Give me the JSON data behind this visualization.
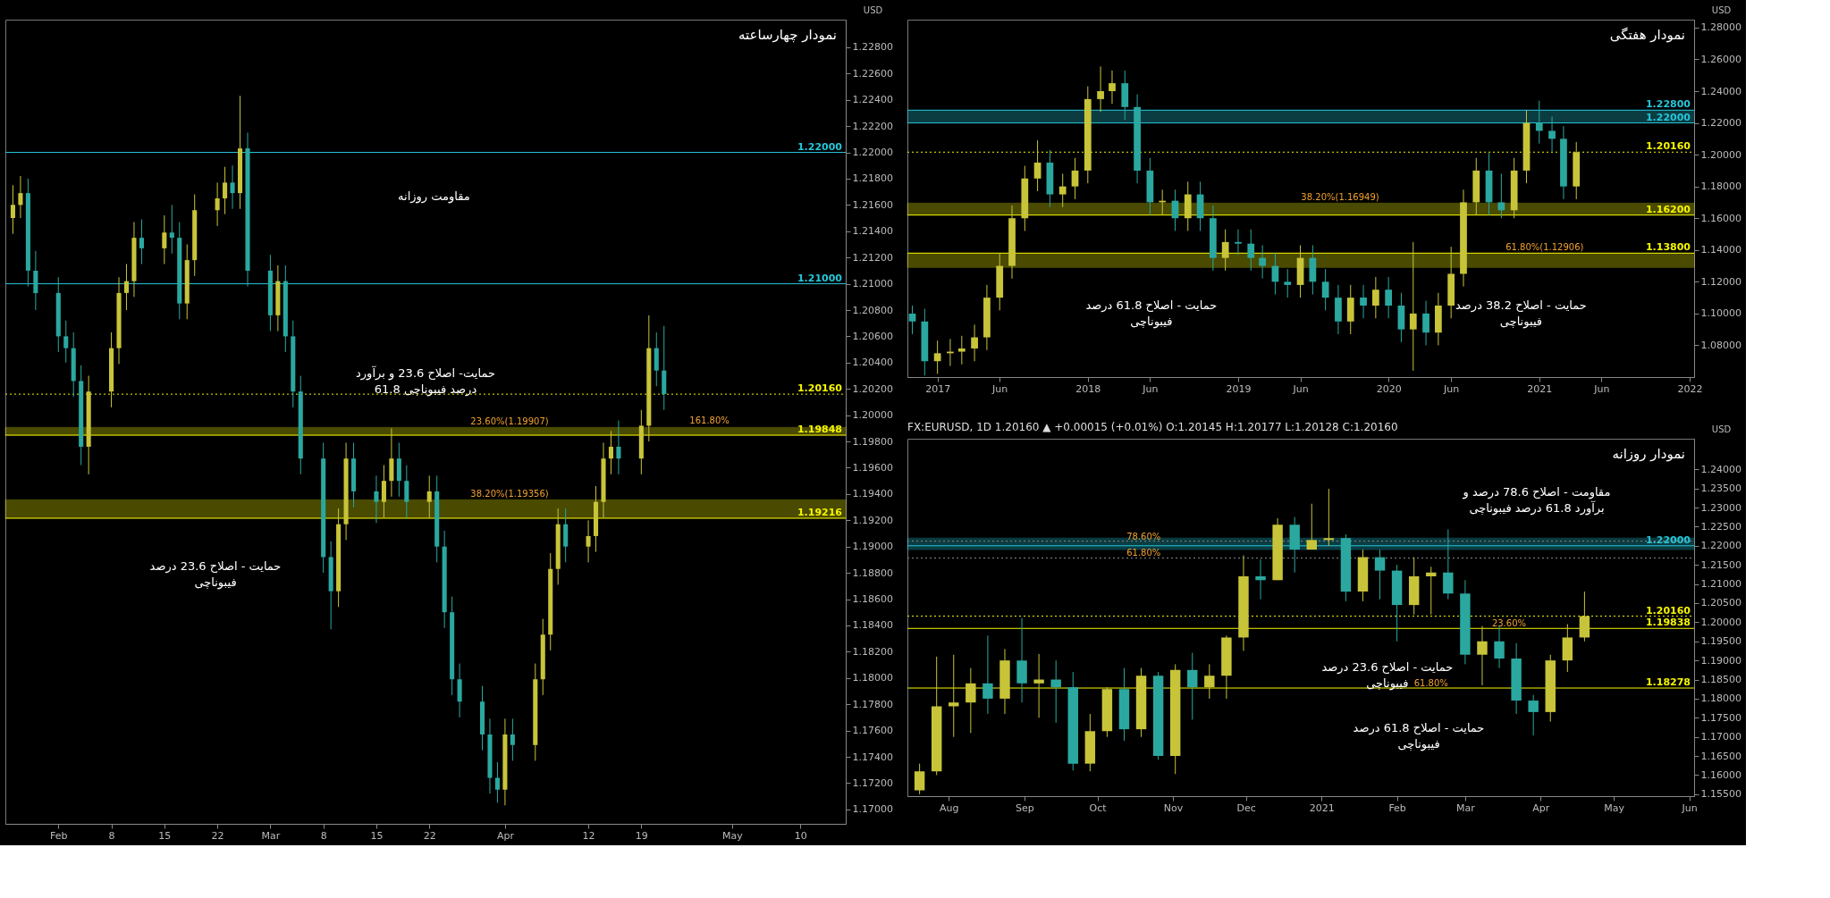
{
  "chart_data": [
    {
      "type": "candlestick",
      "title": "نمودار چهارساعته",
      "ylabel": "USD",
      "colors": [
        "#c8c43a",
        "#c8c43a",
        "#2aa8a0",
        "#2aa8a0",
        "#2aa8a0",
        "#2aa8a0",
        "#2aa8a0",
        "#2aa8a0",
        "#c8c43a",
        "#c8c43a",
        "#c8c43a",
        "#c8c43a",
        "#c8c43a",
        "#2aa8a0",
        "#c8c43a",
        "#2aa8a0",
        "#2aa8a0",
        "#c8c43a",
        "#c8c43a",
        "#c8c43a",
        "#c8c43a",
        "#2aa8a0",
        "#c8c43a",
        "#2aa8a0",
        "#2aa8a0",
        "#c8c43a",
        "#2aa8a0",
        "#2aa8a0",
        "#2aa8a0",
        "#2aa8a0",
        "#2aa8a0",
        "#c8c43a",
        "#c8c43a",
        "#2aa8a0",
        "#2aa8a0",
        "#c8c43a",
        "#c8c43a",
        "#2aa8a0",
        "#2aa8a0",
        "#c8c43a",
        "#2aa8a0",
        "#2aa8a0",
        "#2aa8a0",
        "#2aa8a0",
        "#2aa8a0",
        "#2aa8a0",
        "#2aa8a0",
        "#c8c43a",
        "#2aa8a0",
        "#c8c43a",
        "#c8c43a",
        "#c8c43a",
        "#c8c43a",
        "#2aa8a0",
        "#c8c43a",
        "#c8c43a",
        "#c8c43a",
        "#c8c43a",
        "#2aa8a0",
        "#c8c43a",
        "#c8c43a",
        "#2aa8a0",
        "#2aa8a0"
      ],
      "x": [
        "2021-01-26",
        "2021-01-27",
        "2021-01-28",
        "2021-01-29",
        "2021-02-01",
        "2021-02-02",
        "2021-02-03",
        "2021-02-04",
        "2021-02-05",
        "2021-02-08",
        "2021-02-09",
        "2021-02-10",
        "2021-02-11",
        "2021-02-12",
        "2021-02-15",
        "2021-02-16",
        "2021-02-17",
        "2021-02-18",
        "2021-02-19",
        "2021-02-22",
        "2021-02-23",
        "2021-02-24",
        "2021-02-25",
        "2021-02-26",
        "2021-03-01",
        "2021-03-02",
        "2021-03-03",
        "2021-03-04",
        "2021-03-05",
        "2021-03-08",
        "2021-03-09",
        "2021-03-10",
        "2021-03-11",
        "2021-03-12",
        "2021-03-15",
        "2021-03-16",
        "2021-03-17",
        "2021-03-18",
        "2021-03-19",
        "2021-03-22",
        "2021-03-23",
        "2021-03-24",
        "2021-03-25",
        "2021-03-26",
        "2021-03-29",
        "2021-03-30",
        "2021-03-31",
        "2021-04-01",
        "2021-04-02",
        "2021-04-05",
        "2021-04-06",
        "2021-04-07",
        "2021-04-08",
        "2021-04-09",
        "2021-04-12",
        "2021-04-13",
        "2021-04-14",
        "2021-04-15",
        "2021-04-16",
        "2021-04-19",
        "2021-04-20",
        "2021-04-21",
        "2021-04-22"
      ],
      "ohlc": [
        [
          1.215,
          1.2175,
          1.2138,
          1.216
        ],
        [
          1.216,
          1.2182,
          1.215,
          1.2169
        ],
        [
          1.2169,
          1.218,
          1.2098,
          1.211
        ],
        [
          1.211,
          1.2125,
          1.208,
          1.2093
        ],
        [
          1.2093,
          1.2105,
          1.2048,
          1.206
        ],
        [
          1.206,
          1.2072,
          1.204,
          1.2051
        ],
        [
          1.2051,
          1.2063,
          1.2014,
          1.2026
        ],
        [
          1.2026,
          1.2038,
          1.1962,
          1.1976
        ],
        [
          1.1976,
          1.203,
          1.1955,
          1.2018
        ],
        [
          1.2018,
          1.2063,
          1.2006,
          1.2051
        ],
        [
          1.2051,
          1.2105,
          1.2039,
          1.2093
        ],
        [
          1.2093,
          1.2115,
          1.208,
          1.2102
        ],
        [
          1.2102,
          1.2147,
          1.209,
          1.2135
        ],
        [
          1.2135,
          1.2149,
          1.2115,
          1.2127
        ],
        [
          1.2127,
          1.2152,
          1.2115,
          1.2139
        ],
        [
          1.2139,
          1.216,
          1.2123,
          1.2135
        ],
        [
          1.2135,
          1.2147,
          1.2073,
          1.2085
        ],
        [
          1.2085,
          1.213,
          1.2073,
          1.2118
        ],
        [
          1.2118,
          1.2168,
          1.2106,
          1.2156
        ],
        [
          1.2156,
          1.2177,
          1.2144,
          1.2165
        ],
        [
          1.2165,
          1.2189,
          1.2153,
          1.2177
        ],
        [
          1.2177,
          1.219,
          1.2157,
          1.2169
        ],
        [
          1.2169,
          1.2243,
          1.2157,
          1.2203
        ],
        [
          1.2203,
          1.2215,
          1.2098,
          1.211
        ],
        [
          1.211,
          1.2122,
          1.2064,
          1.2076
        ],
        [
          1.2076,
          1.2114,
          1.2064,
          1.2102
        ],
        [
          1.2102,
          1.2114,
          1.2048,
          1.206
        ],
        [
          1.206,
          1.2072,
          1.2006,
          1.2018
        ],
        [
          1.2018,
          1.203,
          1.1955,
          1.1967
        ],
        [
          1.1967,
          1.1979,
          1.188,
          1.1892
        ],
        [
          1.1892,
          1.1904,
          1.1837,
          1.1866
        ],
        [
          1.1866,
          1.1929,
          1.1854,
          1.1917
        ],
        [
          1.1917,
          1.1979,
          1.1905,
          1.1967
        ],
        [
          1.1967,
          1.1979,
          1.193,
          1.1942
        ],
        [
          1.1942,
          1.1954,
          1.1918,
          1.1934
        ],
        [
          1.1934,
          1.1962,
          1.1922,
          1.195
        ],
        [
          1.195,
          1.199,
          1.1938,
          1.1967
        ],
        [
          1.1967,
          1.1979,
          1.1938,
          1.195
        ],
        [
          1.195,
          1.1962,
          1.1922,
          1.1934
        ],
        [
          1.1934,
          1.1954,
          1.1922,
          1.1942
        ],
        [
          1.1942,
          1.1954,
          1.1888,
          1.19
        ],
        [
          1.19,
          1.1912,
          1.1838,
          1.185
        ],
        [
          1.185,
          1.1862,
          1.1787,
          1.1799
        ],
        [
          1.1799,
          1.1811,
          1.177,
          1.1782
        ],
        [
          1.1782,
          1.1794,
          1.1745,
          1.1757
        ],
        [
          1.1757,
          1.1769,
          1.1712,
          1.1724
        ],
        [
          1.1724,
          1.1736,
          1.1705,
          1.1715
        ],
        [
          1.1715,
          1.1769,
          1.1703,
          1.1757
        ],
        [
          1.1757,
          1.1769,
          1.1737,
          1.1749
        ],
        [
          1.1749,
          1.1811,
          1.1737,
          1.1799
        ],
        [
          1.1799,
          1.1845,
          1.1787,
          1.1833
        ],
        [
          1.1833,
          1.1895,
          1.1821,
          1.1883
        ],
        [
          1.1883,
          1.1929,
          1.1871,
          1.1917
        ],
        [
          1.1917,
          1.1929,
          1.1888,
          1.19
        ],
        [
          1.19,
          1.192,
          1.1888,
          1.1908
        ],
        [
          1.1908,
          1.1946,
          1.1896,
          1.1934
        ],
        [
          1.1934,
          1.1979,
          1.1922,
          1.1967
        ],
        [
          1.1967,
          1.1988,
          1.1955,
          1.1976
        ],
        [
          1.1976,
          1.1996,
          1.1955,
          1.1967
        ],
        [
          1.1967,
          1.2004,
          1.1955,
          1.1992
        ],
        [
          1.1992,
          1.2076,
          1.198,
          1.2051
        ],
        [
          1.2051,
          1.2063,
          1.2022,
          1.2034
        ],
        [
          1.2034,
          1.2068,
          1.2004,
          1.2016
        ]
      ],
      "xlim": [
        "2021-01-25",
        "2021-05-16"
      ],
      "xticks": [
        {
          "value": "2021-02-01",
          "label": "Feb"
        },
        {
          "value": "2021-02-08",
          "label": "8"
        },
        {
          "value": "2021-02-15",
          "label": "15"
        },
        {
          "value": "2021-02-22",
          "label": "22"
        },
        {
          "value": "2021-03-01",
          "label": "Mar"
        },
        {
          "value": "2021-03-08",
          "label": "8"
        },
        {
          "value": "2021-03-15",
          "label": "15"
        },
        {
          "value": "2021-03-22",
          "label": "22"
        },
        {
          "value": "2021-04-01",
          "label": "Apr"
        },
        {
          "value": "2021-04-12",
          "label": "12"
        },
        {
          "value": "2021-04-19",
          "label": "19"
        },
        {
          "value": "2021-05-01",
          "label": "May"
        },
        {
          "value": "2021-05-10",
          "label": "10"
        }
      ],
      "ylim": [
        1.1689,
        1.2301
      ],
      "yticks": [
        {
          "value": 1.17,
          "label": "1.17000"
        },
        {
          "value": 1.172,
          "label": "1.17200"
        },
        {
          "value": 1.174,
          "label": "1.17400"
        },
        {
          "value": 1.176,
          "label": "1.17600"
        },
        {
          "value": 1.178,
          "label": "1.17800"
        },
        {
          "value": 1.18,
          "label": "1.18000"
        },
        {
          "value": 1.182,
          "label": "1.18200"
        },
        {
          "value": 1.184,
          "label": "1.18400"
        },
        {
          "value": 1.186,
          "label": "1.18600"
        },
        {
          "value": 1.188,
          "label": "1.18800"
        },
        {
          "value": 1.19,
          "label": "1.19000"
        },
        {
          "value": 1.192,
          "label": "1.19200"
        },
        {
          "value": 1.194,
          "label": "1.19400"
        },
        {
          "value": 1.196,
          "label": "1.19600"
        },
        {
          "value": 1.198,
          "label": "1.19800"
        },
        {
          "value": 1.2,
          "label": "1.20000"
        },
        {
          "value": 1.202,
          "label": "1.20200"
        },
        {
          "value": 1.204,
          "label": "1.20400"
        },
        {
          "value": 1.206,
          "label": "1.20600"
        },
        {
          "value": 1.208,
          "label": "1.20800"
        },
        {
          "value": 1.21,
          "label": "1.21000"
        },
        {
          "value": 1.212,
          "label": "1.21200"
        },
        {
          "value": 1.214,
          "label": "1.21400"
        },
        {
          "value": 1.216,
          "label": "1.21600"
        },
        {
          "value": 1.218,
          "label": "1.21800"
        },
        {
          "value": 1.22,
          "label": "1.22000"
        },
        {
          "value": 1.222,
          "label": "1.22200"
        },
        {
          "value": 1.224,
          "label": "1.22400"
        },
        {
          "value": 1.226,
          "label": "1.22600"
        },
        {
          "value": 1.228,
          "label": "1.22800"
        }
      ],
      "ref_lines": [
        {
          "axis": "y",
          "value": 1.22,
          "label": "1.22000",
          "color": "#26c6da"
        },
        {
          "axis": "y",
          "value": 1.21,
          "label": "1.21000",
          "color": "#26c6da"
        },
        {
          "axis": "y",
          "value": 1.2016,
          "label": "1.20160",
          "color": "#f5f500",
          "line_style": "dotted"
        },
        {
          "axis": "y",
          "value": 1.19848,
          "label": "1.19848",
          "color": "#f5f500"
        },
        {
          "axis": "y",
          "value": 1.19216,
          "label": "1.19216",
          "color": "#f5f500"
        }
      ],
      "bands": [
        {
          "axis": "y",
          "from": 1.19848,
          "to": 1.19907,
          "label": "23.60%(1.19907)",
          "color": "#f5f500"
        },
        {
          "axis": "y",
          "from": 1.19216,
          "to": 1.19356,
          "label": "38.20%(1.19356)",
          "color": "#f5f500"
        }
      ],
      "annotations": [
        "مقاومت روزانه",
        "حمایت- اصلاح 23.6 و برآورد 61.8 درصد فیبوناچی",
        "حمایت - اصلاح 23.6 درصد فیبوناچی",
        {
          "text": "161.80%",
          "x": "2021-04-28",
          "y": 1.1992
        }
      ]
    },
    {
      "type": "candlestick",
      "title": "نمودار هفتگی",
      "ylabel": "USD",
      "colors": [
        "#2aa8a0",
        "#2aa8a0",
        "#c8c43a",
        "#c8c43a",
        "#c8c43a",
        "#c8c43a",
        "#c8c43a",
        "#c8c43a",
        "#c8c43a",
        "#c8c43a",
        "#c8c43a",
        "#2aa8a0",
        "#c8c43a",
        "#c8c43a",
        "#c8c43a",
        "#c8c43a",
        "#c8c43a",
        "#2aa8a0",
        "#2aa8a0",
        "#2aa8a0",
        "#c8c43a",
        "#2aa8a0",
        "#c8c43a",
        "#2aa8a0",
        "#2aa8a0",
        "#c8c43a",
        "#2aa8a0",
        "#2aa8a0",
        "#2aa8a0",
        "#2aa8a0",
        "#2aa8a0",
        "#c8c43a",
        "#2aa8a0",
        "#2aa8a0",
        "#2aa8a0",
        "#c8c43a",
        "#2aa8a0",
        "#c8c43a",
        "#2aa8a0",
        "#2aa8a0",
        "#c8c43a",
        "#2aa8a0",
        "#c8c43a",
        "#c8c43a",
        "#c8c43a",
        "#c8c43a",
        "#2aa8a0",
        "#2aa8a0",
        "#c8c43a",
        "#c8c43a",
        "#2aa8a0",
        "#2aa8a0",
        "#2aa8a0",
        "#c8c43a"
      ],
      "x": [
        "2016-11-01",
        "2016-12-01",
        "2017-01-01",
        "2017-02-01",
        "2017-03-01",
        "2017-04-01",
        "2017-05-01",
        "2017-06-01",
        "2017-07-01",
        "2017-08-01",
        "2017-09-01",
        "2017-10-01",
        "2017-11-01",
        "2017-12-01",
        "2018-01-01",
        "2018-02-01",
        "2018-03-01",
        "2018-04-01",
        "2018-05-01",
        "2018-06-01",
        "2018-07-01",
        "2018-08-01",
        "2018-09-01",
        "2018-10-01",
        "2018-11-01",
        "2018-12-01",
        "2019-01-01",
        "2019-02-01",
        "2019-03-01",
        "2019-04-01",
        "2019-05-01",
        "2019-06-01",
        "2019-07-01",
        "2019-08-01",
        "2019-09-01",
        "2019-10-01",
        "2019-11-01",
        "2019-12-01",
        "2020-01-01",
        "2020-02-01",
        "2020-03-01",
        "2020-04-01",
        "2020-05-01",
        "2020-06-01",
        "2020-07-01",
        "2020-08-01",
        "2020-09-01",
        "2020-10-01",
        "2020-11-01",
        "2020-12-01",
        "2021-01-01",
        "2021-02-01",
        "2021-03-01",
        "2021-04-01"
      ],
      "ohlc": [
        [
          1.1,
          1.105,
          1.087,
          1.095
        ],
        [
          1.095,
          1.103,
          1.061,
          1.07
        ],
        [
          1.07,
          1.083,
          1.062,
          1.075
        ],
        [
          1.075,
          1.084,
          1.067,
          1.076
        ],
        [
          1.076,
          1.086,
          1.068,
          1.078
        ],
        [
          1.078,
          1.093,
          1.07,
          1.085
        ],
        [
          1.085,
          1.118,
          1.077,
          1.11
        ],
        [
          1.11,
          1.138,
          1.102,
          1.13
        ],
        [
          1.13,
          1.168,
          1.122,
          1.16
        ],
        [
          1.16,
          1.193,
          1.152,
          1.185
        ],
        [
          1.185,
          1.209,
          1.177,
          1.195
        ],
        [
          1.195,
          1.203,
          1.167,
          1.175
        ],
        [
          1.175,
          1.188,
          1.167,
          1.18
        ],
        [
          1.18,
          1.198,
          1.172,
          1.19
        ],
        [
          1.19,
          1.243,
          1.182,
          1.235
        ],
        [
          1.235,
          1.2555,
          1.227,
          1.24
        ],
        [
          1.24,
          1.253,
          1.232,
          1.245
        ],
        [
          1.245,
          1.253,
          1.222,
          1.23
        ],
        [
          1.23,
          1.238,
          1.182,
          1.19
        ],
        [
          1.19,
          1.198,
          1.162,
          1.17
        ],
        [
          1.17,
          1.178,
          1.162,
          1.171
        ],
        [
          1.171,
          1.178,
          1.152,
          1.16
        ],
        [
          1.16,
          1.183,
          1.152,
          1.175
        ],
        [
          1.175,
          1.183,
          1.152,
          1.16
        ],
        [
          1.16,
          1.168,
          1.127,
          1.135
        ],
        [
          1.135,
          1.153,
          1.127,
          1.145
        ],
        [
          1.145,
          1.153,
          1.137,
          1.144
        ],
        [
          1.144,
          1.153,
          1.127,
          1.135
        ],
        [
          1.135,
          1.143,
          1.122,
          1.13
        ],
        [
          1.13,
          1.138,
          1.112,
          1.12
        ],
        [
          1.12,
          1.128,
          1.11,
          1.118
        ],
        [
          1.118,
          1.143,
          1.11,
          1.135
        ],
        [
          1.135,
          1.143,
          1.112,
          1.12
        ],
        [
          1.12,
          1.128,
          1.102,
          1.11
        ],
        [
          1.11,
          1.118,
          1.087,
          1.095
        ],
        [
          1.095,
          1.118,
          1.087,
          1.11
        ],
        [
          1.11,
          1.118,
          1.097,
          1.105
        ],
        [
          1.105,
          1.123,
          1.097,
          1.115
        ],
        [
          1.115,
          1.123,
          1.097,
          1.105
        ],
        [
          1.105,
          1.113,
          1.082,
          1.09
        ],
        [
          1.09,
          1.145,
          1.064,
          1.1
        ],
        [
          1.1,
          1.108,
          1.08,
          1.088
        ],
        [
          1.088,
          1.113,
          1.08,
          1.105
        ],
        [
          1.105,
          1.142,
          1.097,
          1.125
        ],
        [
          1.125,
          1.178,
          1.117,
          1.17
        ],
        [
          1.17,
          1.198,
          1.162,
          1.19
        ],
        [
          1.19,
          1.201,
          1.162,
          1.17
        ],
        [
          1.17,
          1.188,
          1.16,
          1.165
        ],
        [
          1.165,
          1.198,
          1.16,
          1.19
        ],
        [
          1.19,
          1.228,
          1.182,
          1.22
        ],
        [
          1.22,
          1.234,
          1.207,
          1.215
        ],
        [
          1.215,
          1.224,
          1.202,
          1.21
        ],
        [
          1.21,
          1.218,
          1.172,
          1.18
        ],
        [
          1.18,
          1.208,
          1.172,
          1.2016
        ]
      ],
      "xlim": [
        "2016-10-20",
        "2022-01-12"
      ],
      "xticks": [
        {
          "value": "2017-01-01",
          "label": "2017"
        },
        {
          "value": "2017-06-01",
          "label": "Jun"
        },
        {
          "value": "2018-01-01",
          "label": "2018"
        },
        {
          "value": "2018-06-01",
          "label": "Jun"
        },
        {
          "value": "2019-01-01",
          "label": "2019"
        },
        {
          "value": "2019-06-01",
          "label": "Jun"
        },
        {
          "value": "2020-01-01",
          "label": "2020"
        },
        {
          "value": "2020-06-01",
          "label": "Jun"
        },
        {
          "value": "2021-01-01",
          "label": "2021"
        },
        {
          "value": "2021-06-01",
          "label": "Jun"
        },
        {
          "value": "2022-01-01",
          "label": "2022"
        }
      ],
      "ylim": [
        1.06,
        1.285
      ],
      "yticks": [
        {
          "value": 1.08,
          "label": "1.08000"
        },
        {
          "value": 1.1,
          "label": "1.10000"
        },
        {
          "value": 1.12,
          "label": "1.12000"
        },
        {
          "value": 1.14,
          "label": "1.14000"
        },
        {
          "value": 1.16,
          "label": "1.16000"
        },
        {
          "value": 1.18,
          "label": "1.18000"
        },
        {
          "value": 1.2,
          "label": "1.20000"
        },
        {
          "value": 1.22,
          "label": "1.22000"
        },
        {
          "value": 1.24,
          "label": "1.24000"
        },
        {
          "value": 1.26,
          "label": "1.26000"
        },
        {
          "value": 1.28,
          "label": "1.28000"
        }
      ],
      "ref_lines": [
        {
          "axis": "y",
          "value": 1.228,
          "label": "1.22800",
          "color": "#26c6da"
        },
        {
          "axis": "y",
          "value": 1.22,
          "label": "1.22000",
          "color": "#26c6da"
        },
        {
          "axis": "y",
          "value": 1.2016,
          "label": "1.20160",
          "color": "#f5f500",
          "line_style": "dotted"
        },
        {
          "axis": "y",
          "value": 1.162,
          "label": "1.16200",
          "color": "#f5f500"
        },
        {
          "axis": "y",
          "value": 1.138,
          "label": "1.13800",
          "color": "#f5f500"
        }
      ],
      "bands": [
        {
          "axis": "y",
          "from": 1.22,
          "to": 1.228,
          "color": "#26c6da"
        },
        {
          "axis": "y",
          "from": 1.162,
          "to": 1.16949,
          "label": "38.20%(1.16949)",
          "color": "#f5f500"
        },
        {
          "axis": "y",
          "from": 1.12906,
          "to": 1.138,
          "label": "61.80%(1.12906)",
          "color": "#f5f500"
        }
      ],
      "annotations": [
        "حمایت - اصلاح 61.8 درصد فیبوناچی",
        "حمایت - اصلاح 38.2 درصد فیبوناچی"
      ]
    },
    {
      "type": "candlestick",
      "title": "نمودار روزانه",
      "subtitle": "FX:EURUSD, 1D  1.20160 ▲ +0.00015 (+0.01%)  O:1.20145  H:1.20177  L:1.20128  C:1.20160",
      "ylabel": "USD",
      "colors": [
        "#c8c43a",
        "#c8c43a",
        "#c8c43a",
        "#c8c43a",
        "#2aa8a0",
        "#c8c43a",
        "#2aa8a0",
        "#c8c43a",
        "#2aa8a0",
        "#2aa8a0",
        "#c8c43a",
        "#c8c43a",
        "#2aa8a0",
        "#c8c43a",
        "#2aa8a0",
        "#c8c43a",
        "#2aa8a0",
        "#c8c43a",
        "#c8c43a",
        "#c8c43a",
        "#2aa8a0",
        "#c8c43a",
        "#2aa8a0",
        "#c8c43a",
        "#c8c43a",
        "#2aa8a0",
        "#c8c43a",
        "#2aa8a0",
        "#2aa8a0",
        "#c8c43a",
        "#c8c43a",
        "#2aa8a0",
        "#2aa8a0",
        "#c8c43a",
        "#2aa8a0",
        "#2aa8a0",
        "#2aa8a0",
        "#c8c43a",
        "#c8c43a",
        "#c8c43a"
      ],
      "x": [
        "2020-07-20",
        "2020-07-27",
        "2020-08-03",
        "2020-08-10",
        "2020-08-17",
        "2020-08-24",
        "2020-08-31",
        "2020-09-07",
        "2020-09-14",
        "2020-09-21",
        "2020-09-28",
        "2020-10-05",
        "2020-10-12",
        "2020-10-19",
        "2020-10-26",
        "2020-11-02",
        "2020-11-09",
        "2020-11-16",
        "2020-11-23",
        "2020-11-30",
        "2020-12-07",
        "2020-12-14",
        "2020-12-21",
        "2020-12-28",
        "2021-01-04",
        "2021-01-11",
        "2021-01-18",
        "2021-01-25",
        "2021-02-01",
        "2021-02-08",
        "2021-02-15",
        "2021-02-22",
        "2021-03-01",
        "2021-03-08",
        "2021-03-15",
        "2021-03-22",
        "2021-03-29",
        "2021-04-05",
        "2021-04-12",
        "2021-04-19"
      ],
      "ohlc": [
        [
          1.156,
          1.163,
          1.155,
          1.161
        ],
        [
          1.161,
          1.191,
          1.16,
          1.178
        ],
        [
          1.178,
          1.1915,
          1.17,
          1.179
        ],
        [
          1.179,
          1.188,
          1.171,
          1.184
        ],
        [
          1.184,
          1.1965,
          1.176,
          1.18
        ],
        [
          1.18,
          1.193,
          1.176,
          1.19
        ],
        [
          1.19,
          1.2011,
          1.179,
          1.184
        ],
        [
          1.184,
          1.1917,
          1.175,
          1.185
        ],
        [
          1.185,
          1.19,
          1.1737,
          1.183
        ],
        [
          1.183,
          1.187,
          1.1612,
          1.163
        ],
        [
          1.163,
          1.176,
          1.161,
          1.1715
        ],
        [
          1.1715,
          1.183,
          1.17,
          1.1825
        ],
        [
          1.1825,
          1.188,
          1.169,
          1.172
        ],
        [
          1.172,
          1.188,
          1.17,
          1.186
        ],
        [
          1.186,
          1.187,
          1.164,
          1.165
        ],
        [
          1.165,
          1.189,
          1.1603,
          1.1875
        ],
        [
          1.1875,
          1.192,
          1.1745,
          1.183
        ],
        [
          1.183,
          1.189,
          1.18,
          1.186
        ],
        [
          1.186,
          1.1965,
          1.18,
          1.196
        ],
        [
          1.196,
          1.2175,
          1.1925,
          1.212
        ],
        [
          1.212,
          1.2165,
          1.206,
          1.211
        ],
        [
          1.211,
          1.2272,
          1.211,
          1.2255
        ],
        [
          1.2255,
          1.2275,
          1.213,
          1.219
        ],
        [
          1.219,
          1.231,
          1.219,
          1.2215
        ],
        [
          1.2215,
          1.2349,
          1.22,
          1.222
        ],
        [
          1.222,
          1.223,
          1.2055,
          1.208
        ],
        [
          1.208,
          1.219,
          1.2055,
          1.217
        ],
        [
          1.217,
          1.219,
          1.206,
          1.2135
        ],
        [
          1.2135,
          1.215,
          1.195,
          1.2045
        ],
        [
          1.2045,
          1.217,
          1.202,
          1.212
        ],
        [
          1.212,
          1.2145,
          1.202,
          1.213
        ],
        [
          1.213,
          1.2243,
          1.206,
          1.2075
        ],
        [
          1.2075,
          1.211,
          1.189,
          1.1915
        ],
        [
          1.1915,
          1.199,
          1.1835,
          1.195
        ],
        [
          1.195,
          1.199,
          1.188,
          1.1905
        ],
        [
          1.1905,
          1.1945,
          1.176,
          1.1795
        ],
        [
          1.1795,
          1.181,
          1.1704,
          1.1765
        ],
        [
          1.1765,
          1.1915,
          1.174,
          1.19
        ],
        [
          1.19,
          1.1995,
          1.187,
          1.196
        ],
        [
          1.196,
          1.208,
          1.195,
          1.2016
        ]
      ],
      "xlim": [
        "2020-07-15",
        "2021-06-03"
      ],
      "xticks": [
        {
          "value": "2020-08-01",
          "label": "Aug"
        },
        {
          "value": "2020-09-01",
          "label": "Sep"
        },
        {
          "value": "2020-10-01",
          "label": "Oct"
        },
        {
          "value": "2020-11-01",
          "label": "Nov"
        },
        {
          "value": "2020-12-01",
          "label": "Dec"
        },
        {
          "value": "2021-01-01",
          "label": "2021"
        },
        {
          "value": "2021-02-01",
          "label": "Feb"
        },
        {
          "value": "2021-03-01",
          "label": "Mar"
        },
        {
          "value": "2021-04-01",
          "label": "Apr"
        },
        {
          "value": "2021-05-01",
          "label": "May"
        },
        {
          "value": "2021-06-01",
          "label": "Jun"
        }
      ],
      "ylim": [
        1.1545,
        1.248
      ],
      "yticks": [
        {
          "value": 1.155,
          "label": "1.15500"
        },
        {
          "value": 1.16,
          "label": "1.16000"
        },
        {
          "value": 1.165,
          "label": "1.16500"
        },
        {
          "value": 1.17,
          "label": "1.17000"
        },
        {
          "value": 1.175,
          "label": "1.17500"
        },
        {
          "value": 1.18,
          "label": "1.18000"
        },
        {
          "value": 1.185,
          "label": "1.18500"
        },
        {
          "value": 1.19,
          "label": "1.19000"
        },
        {
          "value": 1.195,
          "label": "1.19500"
        },
        {
          "value": 1.2,
          "label": "1.20000"
        },
        {
          "value": 1.205,
          "label": "1.20500"
        },
        {
          "value": 1.21,
          "label": "1.21000"
        },
        {
          "value": 1.215,
          "label": "1.21500"
        },
        {
          "value": 1.22,
          "label": "1.22000"
        },
        {
          "value": 1.225,
          "label": "1.22500"
        },
        {
          "value": 1.23,
          "label": "1.23000"
        },
        {
          "value": 1.235,
          "label": "1.23500"
        },
        {
          "value": 1.24,
          "label": "1.24000"
        }
      ],
      "ref_lines": [
        {
          "axis": "y",
          "value": 1.22,
          "label": "1.22000",
          "color": "#26c6da"
        },
        {
          "axis": "y",
          "value": 1.2212,
          "color": "#888888",
          "line_style": "dotted"
        },
        {
          "axis": "y",
          "value": 1.2168,
          "color": "#888888",
          "line_style": "dotted"
        },
        {
          "axis": "y",
          "value": 1.2016,
          "label": "1.20160",
          "color": "#f5f500",
          "line_style": "dotted"
        },
        {
          "axis": "y",
          "value": 1.19838,
          "label": "1.19838",
          "color": "#f5f500"
        },
        {
          "axis": "y",
          "value": 1.18278,
          "label": "1.18278",
          "color": "#f5f500"
        }
      ],
      "bands": [
        {
          "axis": "y",
          "from": 1.219,
          "to": 1.222,
          "color": "#26c6da"
        }
      ],
      "annotations": [
        "مقاومت - اصلاح 78.6 درصد و برآورد 61.8 درصد فیبوناچی",
        "حمایت - اصلاح 23.6 درصد فیبوناچی",
        "حمایت - اصلاح 61.8 درصد فیبوناچی",
        {
          "text": "78.60%",
          "x": "2020-10-20",
          "y": 1.2212
        },
        {
          "text": "61.80%",
          "x": "2020-10-20",
          "y": 1.2168
        },
        {
          "text": "23.60%",
          "x": "2021-03-19",
          "y": 1.19838
        },
        {
          "text": "61.80%",
          "x": "2021-02-15",
          "y": 1.18278
        }
      ]
    }
  ]
}
